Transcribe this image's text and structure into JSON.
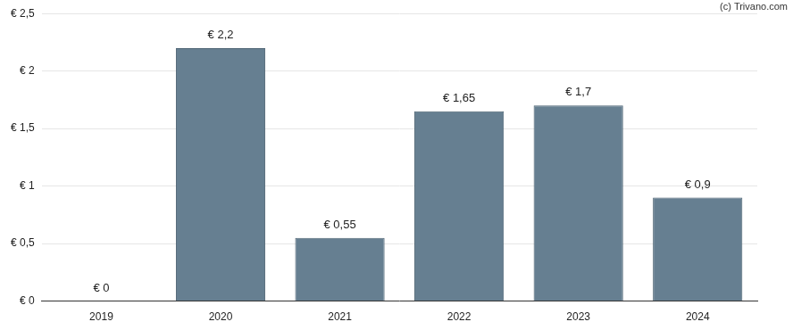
{
  "chart_data": {
    "type": "bar",
    "annotations": [
      "(c) Trivano.com"
    ],
    "categories": [
      "2019",
      "2020",
      "2021",
      "2022",
      "2023",
      "2024"
    ],
    "values": [
      0,
      2.2,
      0.55,
      1.65,
      1.7,
      0.9
    ],
    "value_labels": [
      "€ 0",
      "€ 2,2",
      "€ 0,55",
      "€ 1,65",
      "€ 1,7",
      "€ 0,9"
    ],
    "data_labels": true,
    "color": "#667f91",
    "ylim": [
      0,
      2.5
    ],
    "yticks": [
      {
        "value": 0,
        "label": "€ 0"
      },
      {
        "value": 0.5,
        "label": "€ 0,5"
      },
      {
        "value": 1,
        "label": "€ 1"
      },
      {
        "value": 1.5,
        "label": "€ 1,5"
      },
      {
        "value": 2,
        "label": "€ 2"
      },
      {
        "value": 2.5,
        "label": "€ 2,5"
      }
    ],
    "grid": true
  }
}
